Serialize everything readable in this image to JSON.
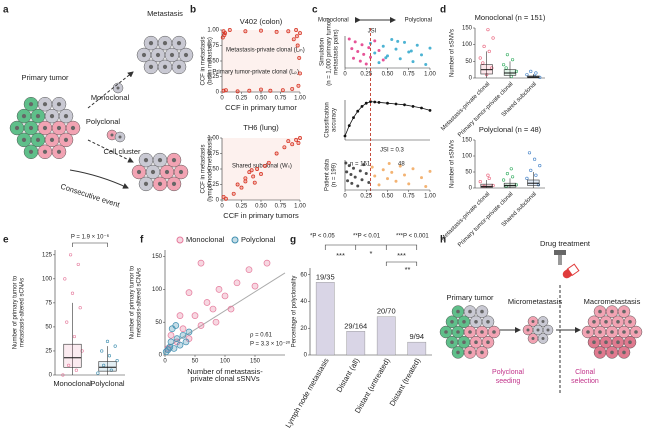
{
  "panel_a": {
    "label": "a",
    "metastasis": "Metastasis",
    "primary_tumor": "Primary tumor",
    "monoclonal": "Monoclonal",
    "polyclonal": "Polyclonal",
    "cell_cluster": "Cell cluster",
    "consecutive_event": "Consecutive event"
  },
  "panel_h": {
    "label": "h",
    "drug_treatment": "Drug treatment",
    "primary_tumor": "Primary tumor",
    "micrometastasis": "Micrometastasis",
    "macrometastasis": "Macrometastasis",
    "polyclonal_seeding": [
      "Polyclonal",
      "seeding"
    ],
    "clonal_selection": [
      "Clonal",
      "selection"
    ]
  },
  "chart_data": [
    {
      "type": "scatter",
      "panel": "b",
      "title": "V402 (colon)",
      "x_label": "CCF in primary tumor",
      "y_label": [
        "CCF in metastasis",
        "(brain metastasis)"
      ],
      "annotations": [
        "Metastasis-private clonal (Lₘ)",
        "Primary tumor-private clonal (Lₚ)"
      ],
      "color": "#d7301f",
      "xlim": [
        0,
        1
      ],
      "ylim": [
        0,
        1
      ],
      "xticks": [
        0,
        0.25,
        {
          "value": 0.5,
          "label": "0.50"
        },
        0.75,
        {
          "value": 1,
          "label": "1.00"
        }
      ],
      "yticks": [
        0,
        0.25,
        {
          "value": 0.5,
          "label": "0.50"
        },
        0.75,
        {
          "value": 1,
          "label": "1.00"
        }
      ],
      "x": [
        0.02,
        0.03,
        0.01,
        0.04,
        0.02,
        0.05,
        0.2,
        0.35,
        0.5,
        0.62,
        0.78,
        0.9,
        0.98,
        1.0,
        0.99,
        0.97,
        1.0,
        0.95,
        0.85,
        0.7,
        0.5,
        0.3,
        0.1,
        0.96,
        0.92
      ],
      "y": [
        0.98,
        0.92,
        0.88,
        0.95,
        0.02,
        0.03,
        0.01,
        0.02,
        0.04,
        0.02,
        0.03,
        0.05,
        0.1,
        0.3,
        0.55,
        0.75,
        0.95,
        1.0,
        0.98,
        0.97,
        0.99,
        0.98,
        1.0,
        0.9,
        0.85
      ]
    },
    {
      "type": "scatter",
      "title": "TH6 (lung)",
      "x_label": "CCF in primary tumors",
      "y_label": [
        "CCF in metastasis",
        "(lymph node metastasis)"
      ],
      "annotations": [
        "Shared subclonal (Wₛ)"
      ],
      "color": "#d7301f",
      "xlim": [
        0,
        1
      ],
      "ylim": [
        0,
        1
      ],
      "xticks": [
        0,
        0.25,
        {
          "value": 0.5,
          "label": "0.50"
        },
        0.75,
        {
          "value": 1,
          "label": "1.00"
        }
      ],
      "yticks": [
        0,
        0.25,
        {
          "value": 0.5,
          "label": "0.50"
        },
        0.75,
        {
          "value": 1,
          "label": "1.00"
        }
      ],
      "x": [
        0.2,
        0.3,
        0.35,
        0.4,
        0.45,
        0.5,
        0.25,
        0.55,
        0.3,
        0.42,
        0.6,
        0.7,
        0.8,
        0.9,
        0.95,
        1.0,
        0.98,
        0.85,
        0.02,
        0.05,
        0.15,
        0.38
      ],
      "y": [
        0.25,
        0.3,
        0.45,
        0.38,
        0.5,
        0.42,
        0.2,
        0.55,
        0.35,
        0.28,
        0.6,
        0.75,
        0.85,
        0.9,
        0.97,
        1.0,
        0.92,
        0.95,
        0.05,
        0.02,
        0.1,
        0.48
      ]
    },
    {
      "type": "strip",
      "panel": "c",
      "y_label": [
        "Simulation",
        "(n = 1,000 primary tumor/",
        "metastasis pairs)"
      ],
      "annotations": [
        "Monoclonal",
        "Polyclonal",
        "JSI"
      ],
      "xlim": [
        0,
        1
      ],
      "xticks": [
        0,
        0.25,
        {
          "value": 0.5,
          "label": "0.50"
        },
        0.75,
        {
          "value": 1,
          "label": "1.00"
        }
      ],
      "series": [
        {
          "color": "#e0287d",
          "x": [
            0.05,
            0.08,
            0.1,
            0.12,
            0.15,
            0.18,
            0.2,
            0.22,
            0.25,
            0.28,
            0.3,
            0.35,
            0.4,
            0.45
          ]
        },
        {
          "color": "#1fa0c8",
          "x": [
            0.3,
            0.35,
            0.4,
            0.45,
            0.5,
            0.55,
            0.6,
            0.65,
            0.7,
            0.75,
            0.8,
            0.85,
            0.9,
            0.95,
            1.0,
            0.48,
            0.62,
            0.78
          ]
        }
      ]
    },
    {
      "type": "line",
      "y_label": [
        "Classification",
        "accuracy"
      ],
      "annotations": [
        "JSI = 0.3"
      ],
      "threshold": 0.3,
      "color": "#111",
      "xlim": [
        0,
        1
      ],
      "ylim": [
        0.5,
        1
      ],
      "x": [
        0,
        0.05,
        0.1,
        0.15,
        0.2,
        0.25,
        0.3,
        0.35,
        0.4,
        0.5,
        0.6,
        0.7,
        0.8,
        0.9,
        1.0
      ],
      "y": [
        0.55,
        0.68,
        0.78,
        0.86,
        0.92,
        0.96,
        0.98,
        0.975,
        0.97,
        0.96,
        0.95,
        0.94,
        0.92,
        0.9,
        0.87
      ]
    },
    {
      "type": "strip",
      "y_label": [
        "Patient data",
        "(n = 199)"
      ],
      "annotations": [
        "n = 151",
        "48"
      ],
      "xlim": [
        0,
        1
      ],
      "xticks": [
        0,
        0.25,
        {
          "value": 0.5,
          "label": "0.50"
        },
        0.75,
        {
          "value": 1,
          "label": "1.00"
        }
      ],
      "series": [
        {
          "color": "#222222",
          "x": [
            0.01,
            0.02,
            0.03,
            0.05,
            0.07,
            0.08,
            0.1,
            0.12,
            0.15,
            0.18,
            0.2,
            0.22,
            0.25,
            0.28
          ]
        },
        {
          "color": "#f0a050",
          "x": [
            0.32,
            0.35,
            0.4,
            0.45,
            0.5,
            0.52,
            0.55,
            0.6,
            0.65,
            0.7,
            0.75,
            0.8,
            0.9,
            0.95,
            1.0
          ]
        }
      ]
    },
    {
      "type": "box",
      "panel": "d",
      "title": "Monoclonal (n = 151)",
      "y_label": "Number of sSNVs",
      "categories": [
        "Metastasis-private clonal",
        "Primary tumor-private clonal",
        "Shared subclonal"
      ],
      "ylim": [
        0,
        150
      ],
      "yticks": [
        0,
        50,
        100,
        150
      ],
      "boxes": [
        {
          "color": "#e8607a",
          "min": 0,
          "q1": 12,
          "median": 25,
          "q3": 40,
          "max": 80,
          "points": [
            60,
            80,
            95,
            120,
            145,
            45,
            30,
            10
          ]
        },
        {
          "color": "#2eaa5c",
          "min": 0,
          "q1": 8,
          "median": 15,
          "q3": 25,
          "max": 50,
          "points": [
            40,
            55,
            70,
            20,
            5,
            30
          ]
        },
        {
          "color": "#3f7fc6",
          "min": 0,
          "q1": 1,
          "median": 3,
          "q3": 6,
          "max": 12,
          "points": [
            10,
            15,
            20,
            2,
            5
          ]
        }
      ]
    },
    {
      "type": "box",
      "title": "Polyclonal (n = 48)",
      "y_label": "Number of sSNVs",
      "categories": [
        "Metastasis-private clonal",
        "Primary tumor-private clonal",
        "Shared subclonal"
      ],
      "ylim": [
        0,
        150
      ],
      "yticks": [
        0,
        50,
        100,
        150
      ],
      "boxes": [
        {
          "color": "#e8607a",
          "min": 0,
          "q1": 2,
          "median": 5,
          "q3": 12,
          "max": 25,
          "points": [
            20,
            30,
            5,
            8,
            40
          ]
        },
        {
          "color": "#2eaa5c",
          "min": 0,
          "q1": 3,
          "median": 8,
          "q3": 15,
          "max": 30,
          "points": [
            25,
            35,
            45,
            10,
            60,
            5
          ]
        },
        {
          "color": "#3f7fc6",
          "min": 0,
          "q1": 8,
          "median": 15,
          "q3": 25,
          "max": 50,
          "points": [
            30,
            40,
            55,
            70,
            90,
            110,
            10
          ]
        }
      ]
    },
    {
      "type": "box",
      "panel": "e",
      "y_label": [
        "Number of primary tumor to",
        "metastasis-altered sCNAs"
      ],
      "annotations": [
        "P = 1.9 × 10⁻⁶"
      ],
      "categories": [
        "Monoclonal",
        "Polyclonal"
      ],
      "ylim": [
        0,
        130
      ],
      "yticks": [
        0,
        25,
        50,
        75,
        100,
        125
      ],
      "boxes": [
        {
          "color": "#e57a9c",
          "min": 0,
          "q1": 8,
          "median": 18,
          "q3": 32,
          "max": 75,
          "points": [
            0,
            5,
            10,
            25,
            40,
            55,
            70,
            85,
            100,
            115,
            125
          ]
        },
        {
          "color": "#3f8fb0",
          "min": 0,
          "q1": 4,
          "median": 8,
          "q3": 14,
          "max": 30,
          "points": [
            2,
            5,
            10,
            15,
            20,
            25,
            30,
            35
          ]
        }
      ]
    },
    {
      "type": "scatter",
      "panel": "f",
      "x_label": [
        "Number of metastasis-",
        "private clonal sSNVs"
      ],
      "y_label": [
        "Number of primary tumor to",
        "metastasis-altered sCNAs"
      ],
      "annotations": [
        "ρ = 0.61",
        "P = 3.3 × 10⁻²⁰"
      ],
      "xlim": [
        0,
        200
      ],
      "ylim": [
        0,
        160
      ],
      "xticks": [
        0,
        50,
        100,
        150
      ],
      "yticks": [
        0,
        50,
        100,
        150
      ],
      "fit_line": {
        "color": "#aaaaaa",
        "x": [
          0,
          200
        ],
        "y": [
          10,
          125
        ]
      },
      "series": [
        {
          "name": "Monoclonal",
          "color": "#e57a9c",
          "x": [
            5,
            10,
            20,
            30,
            40,
            50,
            60,
            70,
            80,
            90,
            100,
            120,
            140,
            150,
            170,
            60,
            40,
            25,
            85,
            110
          ],
          "y": [
            10,
            30,
            20,
            40,
            25,
            60,
            45,
            80,
            70,
            100,
            90,
            110,
            130,
            105,
            140,
            140,
            95,
            60,
            50,
            70
          ]
        },
        {
          "name": "Polyclonal",
          "color": "#3f8fb0",
          "x": [
            2,
            5,
            8,
            10,
            15,
            20,
            25,
            30,
            35,
            40,
            12,
            18
          ],
          "y": [
            5,
            8,
            12,
            20,
            10,
            25,
            15,
            30,
            20,
            35,
            40,
            45
          ]
        }
      ]
    },
    {
      "type": "bar",
      "panel": "g",
      "y_label": "Percentage of polyclonality",
      "color": "#d9d5e6",
      "categories": [
        "Lymph node metastasis",
        "Distant (all)",
        "Distant (untreated)",
        "Distant (treated)"
      ],
      "values": [
        54.3,
        17.7,
        28.6,
        9.6
      ],
      "value_labels": [
        "19/35",
        "29/164",
        "20/70",
        "9/94"
      ],
      "ylim": [
        0,
        65
      ],
      "yticks": [
        0,
        20,
        40,
        60
      ],
      "significance_legend": [
        "*P < 0.05",
        "**P < 0.01",
        "***P < 0.001"
      ],
      "significance": [
        "***",
        "*",
        "***",
        "**"
      ]
    }
  ]
}
